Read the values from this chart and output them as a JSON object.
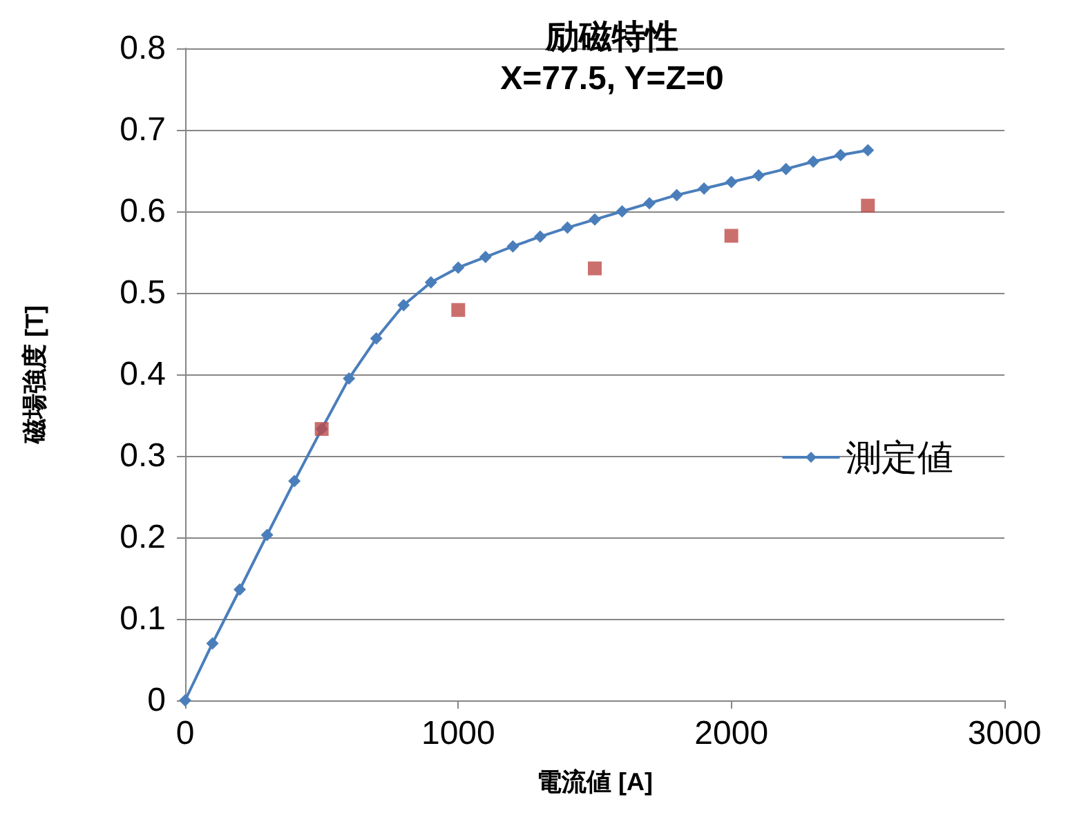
{
  "chart_data": {
    "type": "line",
    "title": "励磁特性",
    "subtitle": "X=77.5, Y=Z=0",
    "xlabel": "電流値 [A]",
    "ylabel": "磁場強度 [T]",
    "xlim": [
      0,
      3000
    ],
    "xticks": [
      0,
      1000,
      2000,
      3000
    ],
    "ylim": [
      0,
      0.8
    ],
    "yticks": [
      0,
      0.1,
      0.2,
      0.3,
      0.4,
      0.5,
      0.6,
      0.7,
      0.8
    ],
    "grid": "y",
    "legend": "right",
    "series": [
      {
        "name": "測定値",
        "color": "#4a7ebb",
        "marker": "diamond",
        "x": [
          0,
          100,
          200,
          300,
          400,
          500,
          600,
          700,
          800,
          900,
          1000,
          1100,
          1200,
          1300,
          1400,
          1500,
          1600,
          1700,
          1800,
          1900,
          2000,
          2100,
          2200,
          2300,
          2400,
          2500
        ],
        "values": [
          0,
          0.07,
          0.136,
          0.203,
          0.269,
          0.333,
          0.395,
          0.444,
          0.485,
          0.513,
          0.531,
          0.544,
          0.557,
          0.569,
          0.58,
          0.59,
          0.6,
          0.61,
          0.62,
          0.628,
          0.636,
          0.644,
          0.652,
          0.661,
          0.669,
          0.675
        ]
      },
      {
        "type": "scatter",
        "color": "#be4b48",
        "marker": "square",
        "x": [
          500,
          1000,
          1500,
          2000,
          2500
        ],
        "values": [
          0.333,
          0.479,
          0.53,
          0.57,
          0.607
        ]
      }
    ]
  }
}
